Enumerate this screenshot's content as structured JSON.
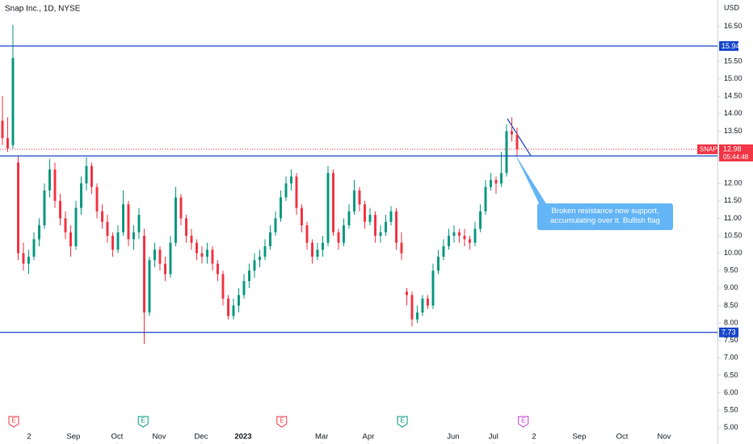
{
  "chart_data": {
    "type": "candlestick",
    "title": "Snap Inc., 1D, NYSE",
    "currency": "USD",
    "symbol": "SNAP",
    "countdown": "05:44:48",
    "up_color": "#089981",
    "down_color": "#f23645",
    "x": [
      0,
      2.5,
      5,
      7.5,
      10,
      12.5,
      15,
      17.5,
      20,
      22.5,
      25,
      27.5,
      30,
      32.5,
      35,
      37.5,
      40,
      42.5,
      45,
      47.5,
      50,
      52.5,
      55,
      57.5,
      60,
      62.5,
      65,
      67.5,
      70,
      72.5,
      75,
      77.5,
      80,
      82.5,
      85,
      87.5,
      90,
      92.5,
      95,
      97.5,
      100,
      102.5,
      105,
      107.5,
      110,
      112.5,
      115,
      117.5,
      120,
      122.5,
      125,
      127.5,
      130,
      132.5,
      135,
      137.5,
      140,
      142.5,
      145,
      147.5,
      150,
      152.5,
      155,
      157.5,
      160,
      162.5,
      165,
      167.5,
      170,
      172.5,
      175,
      177.5,
      180,
      182.5,
      185,
      187.5,
      190,
      192.5,
      195,
      197.5,
      200,
      202.5,
      205,
      207.5,
      210,
      212.5,
      215,
      217.5,
      220,
      222.5,
      225,
      227.5,
      230,
      232.5,
      235,
      237.5,
      240,
      242.5,
      245
    ],
    "open": [
      13.8,
      13.3,
      13.1,
      12.6,
      10.0,
      9.7,
      9.9,
      10.4,
      10.8,
      11.8,
      12.4,
      11.5,
      11.0,
      10.6,
      10.2,
      11.3,
      12.0,
      12.5,
      11.9,
      11.2,
      10.9,
      10.5,
      10.1,
      10.6,
      11.4,
      10.4,
      10.6,
      10.5,
      8.3,
      9.8,
      10.1,
      9.7,
      9.4,
      10.3,
      11.6,
      11.0,
      10.5,
      10.3,
      10.0,
      9.9,
      10.1,
      9.7,
      9.4,
      8.7,
      8.2,
      8.5,
      8.8,
      9.2,
      9.5,
      9.8,
      9.9,
      10.2,
      10.6,
      11.0,
      11.6,
      12.0,
      12.2,
      11.3,
      10.8,
      10.3,
      9.9,
      10.1,
      10.3,
      12.3,
      10.6,
      10.3,
      10.8,
      11.2,
      11.8,
      11.4,
      10.9,
      11.1,
      10.5,
      10.6,
      10.9,
      11.2,
      10.3,
      8.9,
      8.8,
      8.1,
      8.3,
      8.7,
      8.5,
      9.5,
      9.9,
      10.2,
      10.5,
      10.6,
      10.5,
      10.4,
      10.3,
      10.7,
      11.2,
      11.9,
      12.1,
      12.0,
      12.3,
      13.5,
      13.4
    ],
    "high": [
      14.5,
      13.9,
      16.55,
      12.8,
      10.3,
      10.1,
      10.6,
      11.0,
      12.0,
      12.7,
      12.6,
      11.7,
      11.2,
      10.8,
      11.5,
      12.2,
      12.75,
      12.6,
      12.0,
      11.4,
      11.1,
      10.6,
      10.8,
      11.8,
      11.5,
      10.8,
      11.3,
      10.7,
      9.9,
      10.3,
      10.2,
      9.9,
      10.5,
      11.9,
      11.7,
      11.1,
      10.7,
      10.4,
      10.2,
      10.3,
      10.2,
      9.8,
      9.5,
      8.8,
      8.7,
      9.0,
      9.4,
      9.7,
      10.0,
      10.1,
      10.4,
      10.8,
      11.2,
      11.8,
      12.2,
      12.4,
      12.3,
      11.4,
      10.9,
      10.4,
      10.3,
      10.5,
      12.5,
      12.4,
      10.7,
      11.0,
      11.4,
      12.1,
      11.9,
      11.5,
      11.3,
      11.2,
      10.8,
      11.1,
      11.35,
      11.3,
      10.6,
      9.0,
      8.9,
      8.5,
      8.8,
      8.8,
      9.7,
      10.1,
      10.4,
      10.7,
      10.8,
      10.7,
      10.7,
      10.5,
      10.9,
      11.4,
      12.1,
      12.3,
      12.2,
      12.9,
      13.7,
      13.9,
      13.6
    ],
    "low": [
      13.1,
      12.9,
      13.0,
      9.8,
      9.5,
      9.4,
      9.8,
      10.2,
      10.7,
      11.6,
      11.3,
      10.8,
      10.4,
      9.9,
      10.1,
      11.1,
      11.8,
      11.7,
      11.0,
      10.7,
      10.3,
      9.9,
      10.0,
      10.5,
      10.2,
      10.1,
      10.4,
      7.4,
      8.2,
      9.6,
      9.5,
      9.2,
      9.3,
      10.2,
      10.8,
      10.3,
      10.1,
      9.8,
      9.7,
      9.7,
      9.5,
      9.2,
      8.5,
      8.1,
      8.1,
      8.3,
      8.7,
      9.0,
      9.3,
      9.6,
      9.8,
      10.1,
      10.5,
      10.9,
      11.5,
      11.8,
      11.1,
      10.6,
      10.1,
      9.7,
      9.8,
      9.9,
      10.2,
      10.5,
      10.1,
      10.2,
      10.7,
      11.1,
      11.2,
      10.7,
      10.8,
      10.3,
      10.3,
      10.5,
      10.8,
      10.1,
      9.8,
      8.5,
      7.9,
      8.0,
      8.2,
      8.4,
      8.4,
      9.4,
      9.8,
      10.1,
      10.3,
      10.3,
      10.2,
      10.1,
      10.2,
      10.6,
      11.1,
      11.8,
      11.7,
      11.9,
      12.2,
      13.2,
      12.8
    ],
    "close": [
      13.3,
      13.0,
      15.6,
      10.0,
      9.7,
      9.9,
      10.4,
      10.8,
      11.8,
      12.4,
      11.5,
      11.0,
      10.6,
      10.2,
      11.3,
      12.0,
      12.5,
      11.9,
      11.2,
      10.9,
      10.5,
      10.1,
      10.6,
      11.4,
      10.4,
      10.6,
      11.1,
      8.3,
      9.8,
      10.1,
      9.7,
      9.4,
      10.3,
      11.6,
      11.0,
      10.5,
      10.3,
      10.0,
      9.9,
      10.1,
      9.7,
      9.4,
      8.7,
      8.2,
      8.5,
      8.8,
      9.2,
      9.5,
      9.8,
      9.9,
      10.2,
      10.6,
      11.0,
      11.6,
      12.0,
      12.2,
      11.3,
      10.8,
      10.3,
      9.9,
      10.1,
      10.3,
      12.3,
      10.6,
      10.3,
      10.8,
      11.2,
      11.8,
      11.4,
      10.9,
      11.1,
      10.5,
      10.6,
      10.9,
      11.2,
      10.3,
      10.0,
      8.8,
      8.1,
      8.3,
      8.7,
      8.5,
      9.5,
      9.9,
      10.2,
      10.5,
      10.6,
      10.5,
      10.4,
      10.3,
      10.7,
      11.2,
      11.9,
      12.1,
      12.0,
      12.3,
      13.5,
      13.4,
      12.98
    ],
    "xlim": [
      -1.15,
      340.4
    ],
    "xticks": [
      {
        "value": 12.7,
        "label": "2"
      },
      {
        "value": 33.8,
        "label": "Sep"
      },
      {
        "value": 54.6,
        "label": "Oct"
      },
      {
        "value": 74.6,
        "label": "Nov"
      },
      {
        "value": 94.6,
        "label": "Dec"
      },
      {
        "value": 114.6,
        "label": "2023"
      },
      {
        "value": 152,
        "label": "Mar"
      },
      {
        "value": 174.2,
        "label": "Apr"
      },
      {
        "value": 214.6,
        "label": "Jun"
      },
      {
        "value": 233.8,
        "label": "Jul"
      },
      {
        "value": 253.1,
        "label": "2"
      },
      {
        "value": 274.6,
        "label": "Sep"
      },
      {
        "value": 295,
        "label": "Oct"
      },
      {
        "value": 315,
        "label": "Nov"
      }
    ],
    "ylim": [
      4.53,
      17.26
    ],
    "yticks": [
      {
        "value": 5,
        "label": "5.00"
      },
      {
        "value": 5.5,
        "label": "5.50"
      },
      {
        "value": 6,
        "label": "6.00"
      },
      {
        "value": 6.5,
        "label": "6.50"
      },
      {
        "value": 7,
        "label": "7.00"
      },
      {
        "value": 7.5,
        "label": "7.50"
      },
      {
        "value": 8,
        "label": "8.00"
      },
      {
        "value": 8.5,
        "label": "8.50"
      },
      {
        "value": 9,
        "label": "9.00"
      },
      {
        "value": 9.5,
        "label": "9.50"
      },
      {
        "value": 10,
        "label": "10.00"
      },
      {
        "value": 10.5,
        "label": "10.50"
      },
      {
        "value": 11,
        "label": "11.00"
      },
      {
        "value": 11.5,
        "label": "11.50"
      },
      {
        "value": 12,
        "label": "12.00"
      },
      {
        "value": 13.5,
        "label": "13.50"
      },
      {
        "value": 14,
        "label": "14.00"
      },
      {
        "value": 14.5,
        "label": "14.50"
      },
      {
        "value": 15,
        "label": "15.00"
      },
      {
        "value": 15.5,
        "label": "15.50"
      },
      {
        "value": 16.5,
        "label": "16.50"
      }
    ],
    "last_price": 12.98,
    "hlines": [
      15.94,
      12.79,
      7.73
    ],
    "hline_color": "#1848cc",
    "annotation": "Broken resistance now support, accumulating over it. Bullish flag",
    "events": [
      {
        "x": 5.4,
        "label": "E",
        "color": "#f23645"
      },
      {
        "x": 67,
        "label": "E",
        "color": "#089981"
      },
      {
        "x": 133,
        "label": "E",
        "color": "#f23645"
      },
      {
        "x": 190.4,
        "label": "E",
        "color": "#089981"
      },
      {
        "x": 248,
        "label": "E",
        "color": "#c53fd6"
      }
    ]
  }
}
